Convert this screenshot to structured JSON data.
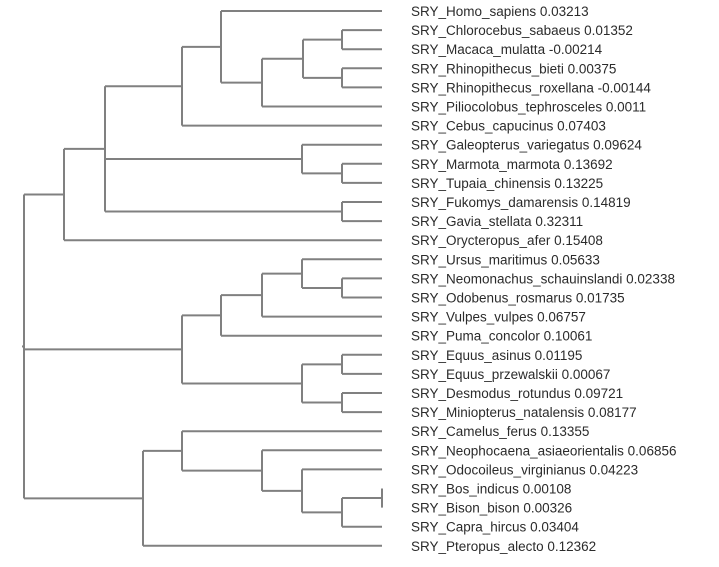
{
  "colors": {
    "branch": "#808080",
    "text": "#2b2b2b",
    "background": "#ffffff"
  },
  "leaves": [
    {
      "name": "SRY_Homo_sapiens",
      "value": "0.03213"
    },
    {
      "name": "SRY_Chlorocebus_sabaeus",
      "value": "0.01352"
    },
    {
      "name": "SRY_Macaca_mulatta",
      "value": "-0.00214"
    },
    {
      "name": "SRY_Rhinopithecus_bieti",
      "value": "0.00375"
    },
    {
      "name": "SRY_Rhinopithecus_roxellana",
      "value": "-0.00144"
    },
    {
      "name": "SRY_Piliocolobus_tephrosceles",
      "value": "0.0011"
    },
    {
      "name": "SRY_Cebus_capucinus",
      "value": "0.07403"
    },
    {
      "name": "SRY_Galeopterus_variegatus",
      "value": "0.09624"
    },
    {
      "name": "SRY_Marmota_marmota",
      "value": "0.13692"
    },
    {
      "name": "SRY_Tupaia_chinensis",
      "value": "0.13225"
    },
    {
      "name": "SRY_Fukomys_damarensis",
      "value": "0.14819"
    },
    {
      "name": "SRY_Gavia_stellata",
      "value": "0.32311"
    },
    {
      "name": "SRY_Orycteropus_afer",
      "value": "0.15408"
    },
    {
      "name": "SRY_Ursus_maritimus",
      "value": "0.05633"
    },
    {
      "name": "SRY_Neomonachus_schauinslandi",
      "value": "0.02338"
    },
    {
      "name": "SRY_Odobenus_rosmarus",
      "value": "0.01735"
    },
    {
      "name": "SRY_Vulpes_vulpes",
      "value": "0.06757"
    },
    {
      "name": "SRY_Puma_concolor",
      "value": "0.10061"
    },
    {
      "name": "SRY_Equus_asinus",
      "value": "0.01195"
    },
    {
      "name": "SRY_Equus_przewalskii",
      "value": "0.00067"
    },
    {
      "name": "SRY_Desmodus_rotundus",
      "value": "0.09721"
    },
    {
      "name": "SRY_Miniopterus_natalensis",
      "value": "0.08177"
    },
    {
      "name": "SRY_Camelus_ferus",
      "value": "0.13355"
    },
    {
      "name": "SRY_Neophocaena_asiaeorientalis",
      "value": "0.06856"
    },
    {
      "name": "SRY_Odocoileus_virginianus",
      "value": "0.04223"
    },
    {
      "name": "SRY_Bos_indicus",
      "value": "0.00108"
    },
    {
      "name": "SRY_Bison_bison",
      "value": "0.00326"
    },
    {
      "name": "SRY_Capra_hircus",
      "value": "0.03404"
    },
    {
      "name": "SRY_Pteropus_alecto",
      "value": "0.12362"
    }
  ]
}
